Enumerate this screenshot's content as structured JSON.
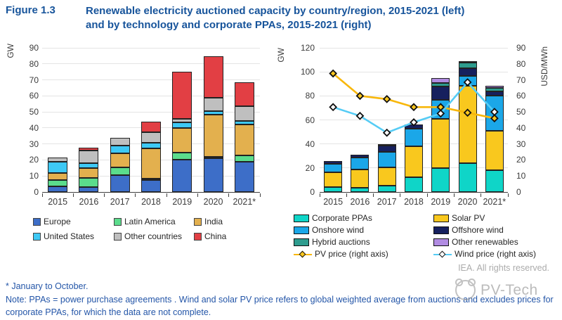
{
  "header": {
    "figure_label": "Figure 1.3",
    "title": "Renewable electricity auctioned capacity by country/region, 2015-2021 (left) and by technology and corporate PPAs, 2015-2021 (right)"
  },
  "footer": {
    "asterisk_note": "* January to October.",
    "note": "Note: PPAs = power purchase agreements . Wind and solar PV price refers to global weighted average from auctions and excludes prices for corporate PPAs, for which the data are not complete.",
    "credit": "IEA. All rights reserved.",
    "watermark": "PV-Tech"
  },
  "chart_data": [
    {
      "type": "bar",
      "stacked": true,
      "title": "",
      "categories": [
        "2015",
        "2016",
        "2017",
        "2018",
        "2019",
        "2020",
        "2021*"
      ],
      "ylabel": "GW",
      "ylim": [
        0,
        90
      ],
      "yticks": [
        0,
        10,
        20,
        30,
        40,
        50,
        60,
        70,
        80,
        90
      ],
      "grid": true,
      "legend_position": "bottom",
      "series": [
        {
          "name": "Europe",
          "color": "#3D6EC8",
          "values": [
            3.5,
            3.0,
            10.5,
            7.5,
            20.3,
            21.0,
            19.0
          ]
        },
        {
          "name": "Latin America",
          "color": "#5BDC8C",
          "values": [
            3.8,
            6.0,
            5.0,
            0.5,
            4.5,
            0.5,
            4.0
          ]
        },
        {
          "name": "India",
          "color": "#E3B04E",
          "values": [
            4.5,
            6.0,
            8.5,
            19.0,
            15.0,
            26.5,
            19.0
          ]
        },
        {
          "name": "United States",
          "color": "#3EC9F5",
          "values": [
            7.0,
            3.0,
            5.0,
            3.5,
            3.5,
            2.0,
            2.5
          ]
        },
        {
          "name": "Other countries",
          "color": "#BFBFBF",
          "values": [
            2.8,
            8.0,
            5.0,
            6.5,
            2.5,
            8.5,
            9.0
          ]
        },
        {
          "name": "China",
          "color": "#E23F44",
          "values": [
            0,
            1.5,
            0,
            6.5,
            29.5,
            26.0,
            15.0
          ]
        }
      ]
    },
    {
      "type": "bar",
      "stacked": true,
      "title": "",
      "categories": [
        "2015",
        "2016",
        "2017",
        "2018",
        "2019",
        "2020",
        "2021*"
      ],
      "ylabel": "GW",
      "ylim": [
        0,
        120
      ],
      "yticks": [
        0,
        20,
        40,
        60,
        80,
        100,
        120
      ],
      "ylabel_right": "USD/MWh",
      "ylim_right": [
        0,
        90
      ],
      "yticks_right": [
        0,
        10,
        20,
        30,
        40,
        50,
        60,
        70,
        80,
        90
      ],
      "grid": true,
      "legend_position": "bottom",
      "series": [
        {
          "name": "Corporate PPAs",
          "color": "#0FD5C8",
          "values": [
            4.0,
            3.5,
            5.0,
            12.5,
            20.0,
            24.0,
            18.0
          ]
        },
        {
          "name": "Solar PV",
          "color": "#F9C81E",
          "values": [
            12.5,
            15.5,
            15.5,
            25.5,
            41.0,
            64.5,
            33.0
          ]
        },
        {
          "name": "Onshore wind",
          "color": "#1BA7E8",
          "values": [
            7.0,
            9.5,
            13.0,
            14.5,
            15.5,
            8.0,
            29.0
          ]
        },
        {
          "name": "Offshore wind",
          "color": "#16205E",
          "values": [
            2.5,
            2.5,
            5.0,
            4.0,
            11.5,
            6.5,
            4.0
          ]
        },
        {
          "name": "Hybrid auctions",
          "color": "#2E9C8E",
          "values": [
            0,
            0,
            0,
            0,
            3.0,
            4.5,
            2.5
          ]
        },
        {
          "name": "Other renewables",
          "color": "#B18CE2",
          "values": [
            0,
            0,
            1.5,
            0,
            4.0,
            1.5,
            2.0
          ]
        }
      ],
      "lines": [
        {
          "name": "PV price (right axis)",
          "axis": "right",
          "color": "#F8B70B",
          "marker_fill": "#FFC81E",
          "values": [
            74,
            60,
            58,
            53,
            53,
            49.5,
            46
          ]
        },
        {
          "name": "Wind price (right axis)",
          "axis": "right",
          "color": "#55CCF5",
          "marker_fill": "#FFFFFF",
          "values": [
            53,
            47.5,
            37,
            43.5,
            49,
            68.5,
            50
          ]
        }
      ]
    }
  ]
}
